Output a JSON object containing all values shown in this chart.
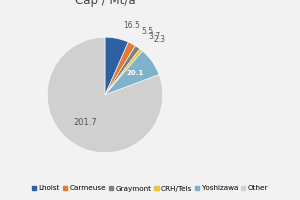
{
  "title": "Cap / Mt/a",
  "labels": [
    "Lhoist",
    "Carmeuse",
    "Graymont",
    "CRH/Tels",
    "Yoshizawa",
    "Other"
  ],
  "values": [
    16.5,
    5.5,
    3.7,
    2.3,
    20.1,
    201.7
  ],
  "colors": [
    "#2e5fa3",
    "#e07b39",
    "#808080",
    "#e8c440",
    "#7fb3cc",
    "#d0d0d0"
  ],
  "slice_labels": [
    "16.5",
    "5.5",
    "3.7",
    "2.3",
    "20.1",
    "201.7"
  ],
  "background_color": "#f2f2f2",
  "legend_fontsize": 5.2,
  "title_fontsize": 8.5
}
